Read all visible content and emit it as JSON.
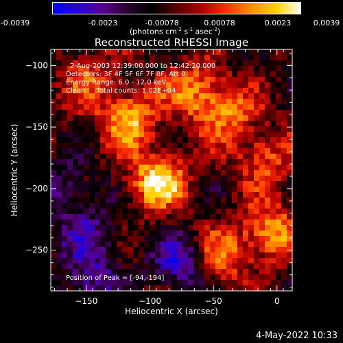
{
  "colorbar": {
    "ticks": [
      "-0.0039",
      "-0.0023",
      "-0.00078",
      "0.00078",
      "0.0023",
      "0.0039"
    ],
    "unit_html": "(photons cm<sup>-2</sup> s<sup>-1</sup> asec<sup>-2</sup>)",
    "colors": [
      "#0000ff",
      "#2a00d0",
      "#5a008c",
      "#2a0030",
      "#000000",
      "#5a0000",
      "#b00000",
      "#ff3000",
      "#ff8c00",
      "#ffd000",
      "#ffffff"
    ]
  },
  "chart_data": {
    "type": "heatmap",
    "title": "Reconstructed RHESSI Image",
    "xlabel": "Heliocentric X (arcsec)",
    "ylabel": "Heliocentric Y (arcsec)",
    "xlim": [
      -178,
      12
    ],
    "ylim": [
      -283,
      -87
    ],
    "xticks": [
      -150,
      -100,
      -50,
      0
    ],
    "yticks": [
      -100,
      -150,
      -200,
      -250
    ],
    "value_range": [
      -0.0039,
      0.0039
    ],
    "annotations": [
      "2-Aug-2003 12:39:00.000 to 12:42:20.000",
      "Detectors: 3F 4F 5F 6F 7F 8F, Att 0",
      "Energy Range: 6.0 - 12.0 keV",
      "Clean     Total counts: 1.02E+04"
    ],
    "peak_label": "Position of Peak = [-94,-194]",
    "hot_spots": [
      {
        "x": -94,
        "y": -194,
        "value": 0.0039
      },
      {
        "x": -117,
        "y": -143,
        "value": 0.0033
      },
      {
        "x": -65,
        "y": -120,
        "value": 0.0026
      },
      {
        "x": -40,
        "y": -140,
        "value": 0.0024
      },
      {
        "x": -5,
        "y": -235,
        "value": 0.003
      },
      {
        "x": -45,
        "y": -255,
        "value": 0.0026
      },
      {
        "x": -10,
        "y": -175,
        "value": 0.0022
      },
      {
        "x": -150,
        "y": -110,
        "value": 0.0018
      },
      {
        "x": -150,
        "y": -235,
        "value": -0.0018
      },
      {
        "x": -145,
        "y": -275,
        "value": -0.0022
      },
      {
        "x": -75,
        "y": -260,
        "value": -0.0028
      },
      {
        "x": -170,
        "y": -200,
        "value": -0.0016
      }
    ]
  },
  "footer": {
    "date": "4-May-2022 10:33"
  }
}
